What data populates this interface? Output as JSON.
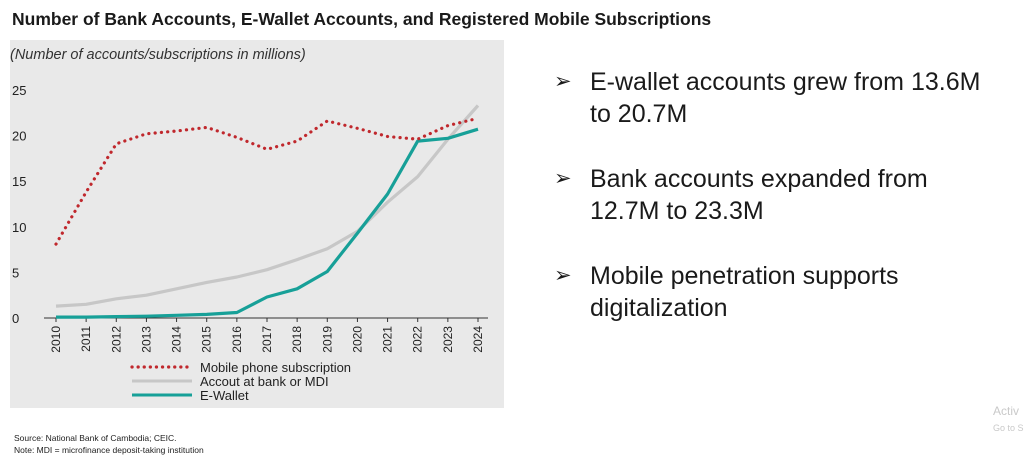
{
  "title": "Number of Bank Accounts, E-Wallet Accounts, and Registered Mobile Subscriptions",
  "chart_data": {
    "type": "line",
    "subtitle": "(Number of accounts/subscriptions in millions)",
    "x": [
      "2010",
      "2011",
      "2012",
      "2013",
      "2014",
      "2015",
      "2016",
      "2017",
      "2018",
      "2019",
      "2020",
      "2021",
      "2022",
      "2023",
      "2024"
    ],
    "ylim": [
      0,
      25
    ],
    "yticks": [
      0,
      5,
      10,
      15,
      20,
      25
    ],
    "grid": false,
    "legend_placement": "bottom-left",
    "series": [
      {
        "name": "Mobile phone subscription",
        "color": "#c0282d",
        "style": "dotted",
        "values": [
          8.1,
          13.8,
          19.1,
          20.2,
          20.5,
          20.9,
          19.8,
          18.5,
          19.4,
          21.6,
          20.8,
          19.9,
          19.6,
          21.1,
          21.9
        ]
      },
      {
        "name": "Accout at bank or MDI",
        "color": "#c7c7c7",
        "style": "solid",
        "values": [
          1.3,
          1.5,
          2.1,
          2.5,
          3.2,
          3.9,
          4.5,
          5.3,
          6.4,
          7.6,
          9.5,
          12.7,
          15.5,
          19.6,
          23.3
        ]
      },
      {
        "name": "E-Wallet",
        "color": "#17a098",
        "style": "solid",
        "values": [
          0.1,
          0.1,
          0.15,
          0.2,
          0.3,
          0.4,
          0.6,
          2.3,
          3.2,
          5.1,
          9.3,
          13.6,
          19.4,
          19.7,
          20.7
        ]
      }
    ]
  },
  "bullets": [
    {
      "marker": "➢",
      "text": "E-wallet accounts grew from 13.6M to 20.7M"
    },
    {
      "marker": "➢",
      "text": "Bank accounts expanded from 12.7M to 23.3M"
    },
    {
      "marker": "➢",
      "text": "Mobile penetration supports digitalization"
    }
  ],
  "notes": {
    "source": "Source: National Bank of Cambodia; CEIC.",
    "note": "Note: MDI = microfinance deposit-taking institution"
  },
  "watermark": {
    "line1": "Activ",
    "line2": "Go to S"
  }
}
